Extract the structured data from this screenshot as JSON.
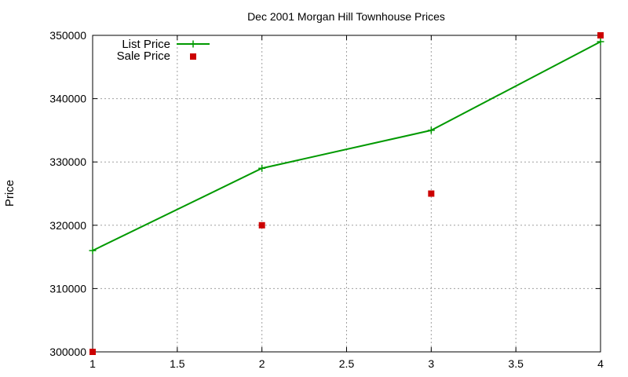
{
  "chart_data": {
    "type": "line",
    "title": "Dec 2001 Morgan Hill Townhouse Prices",
    "xlabel": "",
    "ylabel": "Price",
    "xlim": [
      1,
      4
    ],
    "ylim": [
      300000,
      350000
    ],
    "x_ticks": [
      "1",
      "1.5",
      "2",
      "2.5",
      "3",
      "3.5",
      "4"
    ],
    "y_ticks": [
      "300000",
      "310000",
      "320000",
      "330000",
      "340000",
      "350000"
    ],
    "x_tick_values": [
      1,
      1.5,
      2,
      2.5,
      3,
      3.5,
      4
    ],
    "y_tick_values": [
      300000,
      310000,
      320000,
      330000,
      340000,
      350000
    ],
    "grid": true,
    "legend_position": "top-left",
    "series": [
      {
        "name": "List Price",
        "style": "line-with-plus-markers",
        "color": "#009900",
        "x": [
          1,
          2,
          3,
          4
        ],
        "y": [
          316000,
          329000,
          335000,
          349000
        ]
      },
      {
        "name": "Sale Price",
        "style": "square-markers",
        "color": "#cc0000",
        "x": [
          1,
          2,
          3,
          4
        ],
        "y": [
          300000,
          320000,
          325000,
          350000
        ]
      }
    ]
  }
}
